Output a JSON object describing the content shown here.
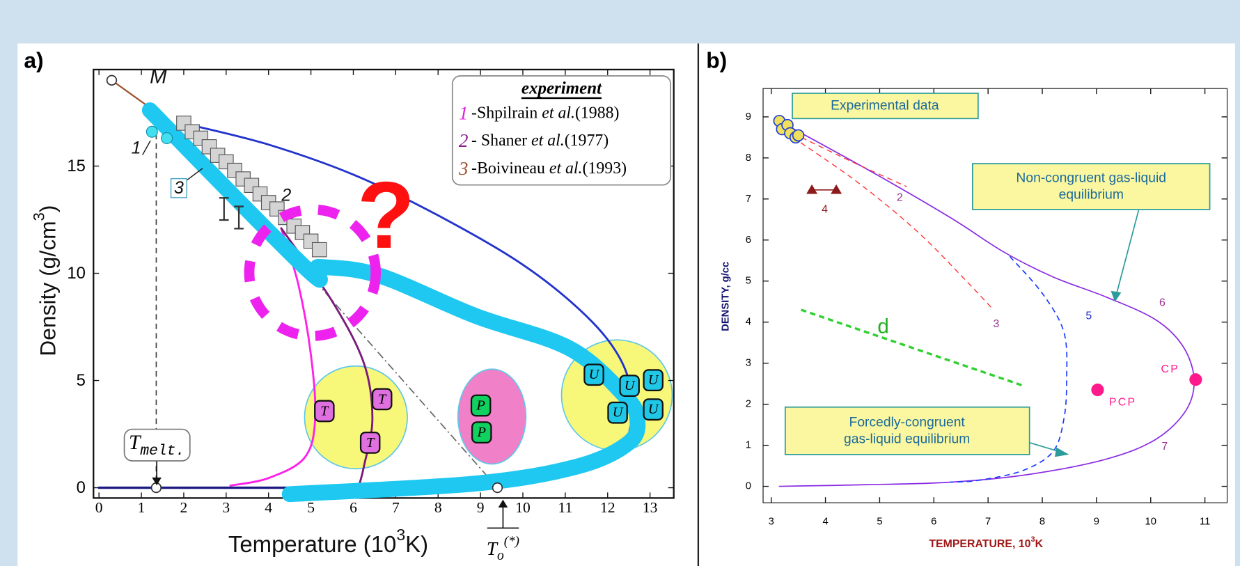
{
  "chart_data": [
    {
      "type": "line",
      "title": "a)",
      "x_label": {
        "text": "Temperature (10",
        "sup": "3",
        "end": "K)"
      },
      "y_label": {
        "text": "Density (g/cm",
        "sup": "3",
        "end": ")"
      },
      "xlim": [
        -0.13,
        13.56
      ],
      "ylim": [
        -0.48,
        19.5
      ],
      "xticks": [
        0,
        1,
        2,
        3,
        4,
        5,
        6,
        7,
        8,
        9,
        10,
        11,
        12,
        13
      ],
      "yticks": [
        0,
        5,
        10,
        15
      ],
      "series": [
        {
          "x": [
            0.3,
            1.5
          ],
          "values": [
            19.0,
            17.3
          ],
          "color": "#a0522d",
          "width": 2,
          "style": "solid"
        },
        {
          "x": [
            2.2,
            4,
            6,
            8,
            10,
            11.5,
            12.3,
            12.6,
            12.5
          ],
          "values": [
            16.9,
            16.0,
            14.6,
            12.7,
            10.4,
            8.0,
            6.0,
            4.0,
            2.5
          ],
          "color": "#2233cc",
          "width": 2.5,
          "style": "solid"
        },
        {
          "x": [
            0,
            9.4
          ],
          "values": [
            0,
            0
          ],
          "color": "#1a1a80",
          "width": 3,
          "style": "solid"
        },
        {
          "x": [
            4.85,
            9.4
          ],
          "values": [
            10.2,
            0
          ],
          "color": "#666666",
          "width": 1.5,
          "style": "dashdot"
        },
        {
          "x": [
            4.3,
            4.7,
            5.0,
            5.1,
            4.85,
            4.0,
            3.1
          ],
          "values": [
            12.1,
            9.5,
            6.2,
            3.2,
            1.4,
            0.45,
            0.1
          ],
          "color": "#ff20e8",
          "width": 2.5,
          "style": "solid"
        },
        {
          "x": [
            4.3,
            5.5,
            6.25,
            6.45,
            6.25,
            6.15
          ],
          "values": [
            12.1,
            8.7,
            5.8,
            3.2,
            1.0,
            0.2
          ],
          "color": "#7a1a7a",
          "width": 2.5,
          "style": "solid"
        },
        {
          "x": [
            1.35,
            1.35
          ],
          "values": [
            16.5,
            0.3
          ],
          "color": "#444444",
          "width": 1.5,
          "style": "dashed"
        },
        {
          "x": [
            1.2,
            4.9,
            5.2,
            6.6,
            8.9,
            11.1,
            12.4,
            12.7,
            12.5,
            11.3,
            8.9,
            4.5
          ],
          "values": [
            17.6,
            10.2,
            10.3,
            9.9,
            8.0,
            6.5,
            4.3,
            3.2,
            2.1,
            1.0,
            0.2,
            -0.3
          ],
          "color": "#1ec8f0",
          "width": 20,
          "style": "solid"
        },
        {
          "x": [
            2.0,
            2.2,
            2.4,
            2.6,
            2.8,
            3.0,
            3.2,
            3.4,
            3.6,
            3.8,
            4.0,
            4.2,
            4.4,
            4.6,
            4.8,
            5.0,
            5.2
          ],
          "values": [
            17.0,
            16.6,
            16.3,
            15.9,
            15.5,
            15.2,
            14.8,
            14.4,
            14.1,
            13.7,
            13.3,
            13.0,
            12.6,
            12.2,
            11.9,
            11.5,
            11.1
          ],
          "color": "#d4d4d4",
          "marker": "square"
        },
        {
          "x": [
            1.25,
            1.6
          ],
          "values": [
            16.6,
            16.3
          ],
          "color": "#40e0f0",
          "marker": "dot"
        },
        {
          "x": [
            2.95,
            3.3
          ],
          "values": [
            13.0,
            12.6
          ],
          "color": "#333333",
          "marker": "errorbar"
        },
        {
          "x": [
            0.3,
            1.35,
            9.4
          ],
          "values": [
            19.0,
            0,
            0
          ],
          "color": "#333333",
          "marker": "ring"
        }
      ],
      "legend": {
        "title": "experiment",
        "entries": [
          {
            "number": "1",
            "before": "-Shpilrain ",
            "italic": "et al.",
            "after": "(1988)",
            "color": "#e020e0"
          },
          {
            "number": "2",
            "before": "- Shaner ",
            "italic": "et al.",
            "after": "(1977)",
            "color": "#8b1a8b"
          },
          {
            "number": "3",
            "before": "-Boivineau ",
            "italic": "et al.",
            "after": "(1993)",
            "color": "#a0522d"
          }
        ]
      },
      "annotations": [
        "M",
        "1",
        "3",
        "2",
        "?"
      ],
      "phase_labels": [
        "T",
        "T",
        "T",
        "P",
        "P",
        "U",
        "U",
        "U",
        "U",
        "U"
      ],
      "t_melt": {
        "text": "T",
        "sub": "melt."
      },
      "t_zero": {
        "text": "T",
        "sub": "o",
        "sup": "(*)"
      }
    },
    {
      "type": "line",
      "title": "b)",
      "x_label": {
        "text": "TEMPERATURE, 10",
        "sup": "3",
        "end": "K"
      },
      "y_label": {
        "text": "DENSITY, g/cc"
      },
      "xlim": [
        2.85,
        11.41
      ],
      "ylim": [
        -0.4,
        9.69
      ],
      "xticks": [
        3,
        4,
        5,
        6,
        7,
        8,
        9,
        10,
        11
      ],
      "yticks": [
        0,
        1,
        2,
        3,
        4,
        5,
        6,
        7,
        8,
        9
      ],
      "series": [
        {
          "x": [
            3.2,
            4.8,
            6.3,
            7.3,
            8.2,
            9.2,
            10.1,
            10.6,
            10.8,
            10.65,
            10.1,
            9.2,
            7.75,
            6.3,
            4.8,
            3.15
          ],
          "values": [
            8.86,
            7.7,
            6.55,
            5.7,
            5.1,
            4.6,
            4.05,
            3.4,
            2.6,
            1.85,
            1.15,
            0.67,
            0.29,
            0.1,
            0.04,
            0.0
          ],
          "color": "#8a2be2",
          "width": 1.5,
          "style": "solid"
        },
        {
          "x": [
            7.4,
            8.0,
            8.4,
            8.45,
            8.4,
            8.2,
            7.65,
            6.85,
            6.3
          ],
          "values": [
            5.6,
            4.7,
            3.75,
            2.6,
            1.65,
            0.85,
            0.39,
            0.15,
            0.1
          ],
          "color": "#1a3cff",
          "width": 1.5,
          "style": "dashed"
        },
        {
          "x": [
            3.4,
            4.5,
            5.5
          ],
          "values": [
            8.6,
            7.9,
            7.3
          ],
          "color": "#ff3030",
          "width": 1.2,
          "style": "dashed"
        },
        {
          "x": [
            3.4,
            4.6,
            5.7,
            6.6,
            7.1
          ],
          "values": [
            8.5,
            7.4,
            6.2,
            5.0,
            4.3
          ],
          "color": "#ff3030",
          "width": 1.2,
          "style": "dashed"
        },
        {
          "x": [
            3.55,
            7.65
          ],
          "values": [
            4.3,
            2.45
          ],
          "color": "#30d030",
          "width": 3,
          "style": "dashed"
        },
        {
          "x": [
            3.75,
            4.2
          ],
          "values": [
            7.22,
            7.22
          ],
          "color": "#8b1a1a",
          "marker": "triangle"
        },
        {
          "x": [
            3.15,
            3.2,
            3.3,
            3.35,
            3.45,
            3.5
          ],
          "values": [
            8.9,
            8.7,
            8.8,
            8.6,
            8.5,
            8.55
          ],
          "color": "#f0e060",
          "marker": "circle"
        },
        {
          "x": [
            9.02,
            10.83
          ],
          "values": [
            2.35,
            2.6
          ],
          "color": "#ff1a8c",
          "marker": "dot"
        }
      ],
      "annotations": [
        "2",
        "3",
        "4",
        "5",
        "6",
        "7",
        "d",
        "CP",
        "PCP"
      ],
      "boxes": [
        [
          "Experimental data"
        ],
        [
          "Non-congruent gas-liquid",
          "equilibrium"
        ],
        [
          "Forcedly-congruent",
          "gas-liquid equilibrium"
        ]
      ]
    }
  ]
}
